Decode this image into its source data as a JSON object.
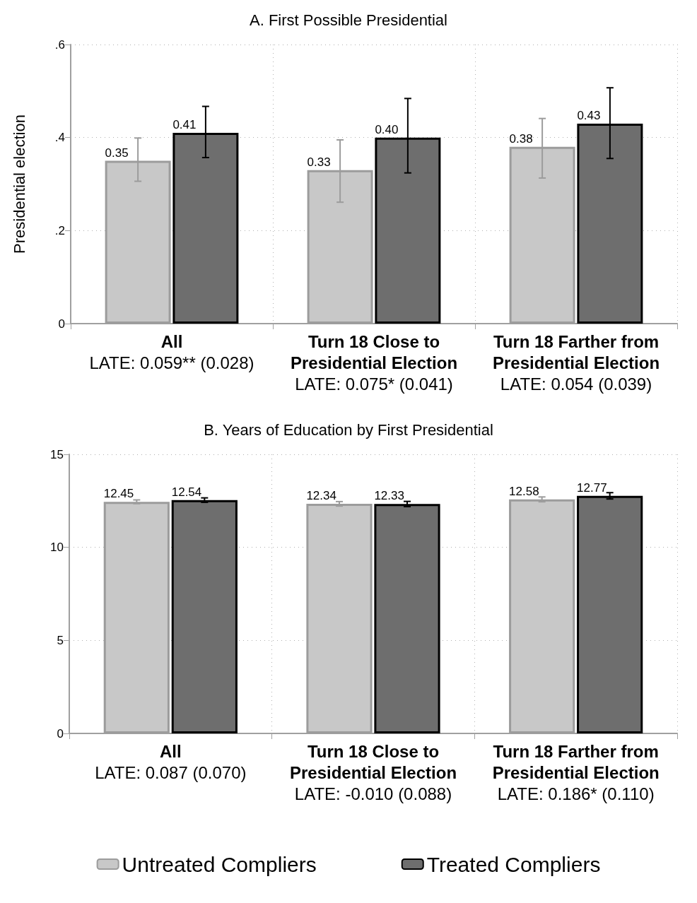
{
  "chart_data": [
    {
      "type": "bar",
      "title": "A. First Possible Presidential",
      "ylabel": "Presidential election",
      "categories": [
        "All\nLATE: 0.059** (0.028)",
        "Turn 18 Close to\nPresidential Election\nLATE: 0.075* (0.041)",
        "Turn 18 Farther from\nPresidential Election\nLATE: 0.054 (0.039)"
      ],
      "series": [
        {
          "color": "#c8c8c8",
          "values": [
            0.35,
            0.33,
            0.38
          ],
          "errors": [
            [
              0.306,
              0.399
            ],
            [
              0.261,
              0.395
            ],
            [
              0.313,
              0.441
            ]
          ],
          "value_labels": [
            "0.35",
            "0.33",
            "0.38"
          ]
        },
        {
          "color": "#6e6e6e",
          "values": [
            0.41,
            0.4,
            0.43
          ],
          "errors": [
            [
              0.357,
              0.467
            ],
            [
              0.324,
              0.484
            ],
            [
              0.355,
              0.507
            ]
          ],
          "value_labels": [
            "0.41",
            "0.40",
            "0.43"
          ]
        }
      ],
      "ylim": [
        0,
        0.6
      ],
      "yticks": [
        0,
        {
          "value": 0.2,
          "label": ".2"
        },
        {
          "value": 0.4,
          "label": ".4"
        },
        {
          "value": 0.6,
          "label": ".6"
        }
      ],
      "grid": true,
      "legend": false
    },
    {
      "type": "bar",
      "title": "B. Years of Education by First Presidential",
      "categories": [
        "All\nLATE: 0.087 (0.070)",
        "Turn 18 Close to\nPresidential Election\nLATE: -0.010 (0.088)",
        "Turn 18 Farther from\nPresidential Election\nLATE: 0.186* (0.110)"
      ],
      "series": [
        {
          "name": "Untreated Compliers",
          "color": "#c8c8c8",
          "values": [
            12.45,
            12.34,
            12.58
          ],
          "errors": [
            [
              12.35,
              12.55
            ],
            [
              12.22,
              12.46
            ],
            [
              12.45,
              12.71
            ]
          ],
          "value_labels": [
            "12.45",
            "12.34",
            "12.58"
          ]
        },
        {
          "name": "Treated Compliers",
          "color": "#6e6e6e",
          "values": [
            12.54,
            12.33,
            12.77
          ],
          "errors": [
            [
              12.42,
              12.66
            ],
            [
              12.19,
              12.47
            ],
            [
              12.6,
              12.94
            ]
          ],
          "value_labels": [
            "12.54",
            "12.33",
            "12.77"
          ]
        }
      ],
      "ylim": [
        0,
        15
      ],
      "yticks": [
        0,
        5,
        10,
        15
      ],
      "grid": true,
      "legend": "bottom"
    }
  ]
}
